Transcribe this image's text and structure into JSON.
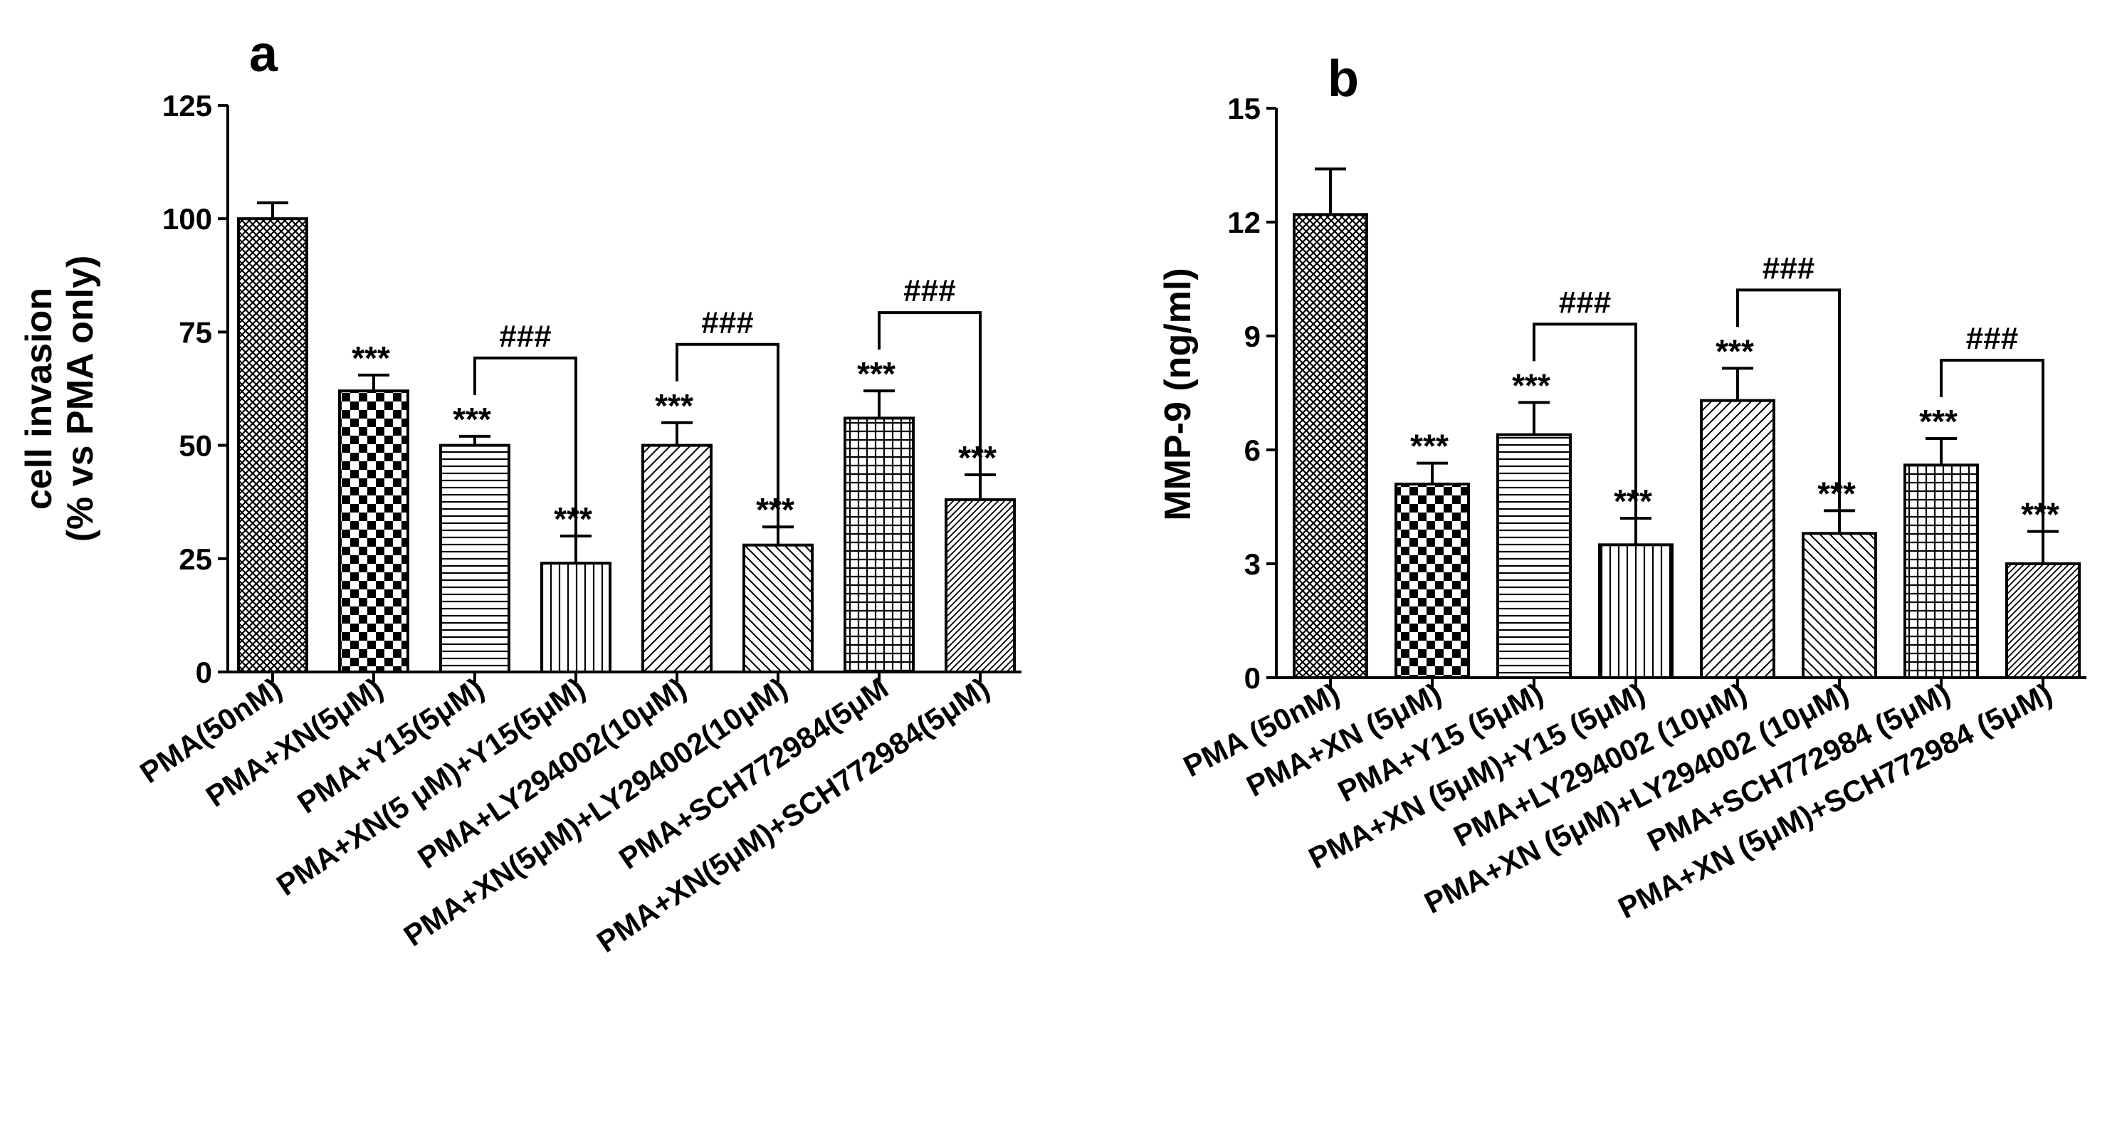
{
  "figure": {
    "colors": {
      "bar_edge": "#000000",
      "pattern": "#000000",
      "background": "#ffffff"
    }
  },
  "chart_data": [
    {
      "panel": "a",
      "type": "bar",
      "ylabel_line1": "cell invasion",
      "ylabel_line2": "(% vs PMA only)",
      "ylim": [
        0,
        125
      ],
      "yticks": [
        0,
        25,
        50,
        75,
        100,
        125
      ],
      "categories": [
        "PMA(50nM)",
        "PMA+XN(5μM)",
        "PMA+Y15(5μM)",
        "PMA+XN(5 μM)+Y15(5μM)",
        "PMA+LY294002(10μM)",
        "PMA+XN(5μM)+LY294002(10μM)",
        "PMA+SCH772984(5μM",
        "PMA+XN(5μM)+SCH772984(5μM)"
      ],
      "values": [
        100,
        62,
        50,
        24,
        50,
        28,
        56,
        38
      ],
      "errors": [
        3.5,
        3.5,
        2,
        6,
        5,
        4,
        6,
        5.5
      ],
      "patterns": [
        "crosshatch",
        "checker",
        "hlines",
        "vlines",
        "diag-right",
        "diag-left",
        "grid",
        "diag-right-fine"
      ],
      "significance": [
        "",
        "***",
        "***",
        "***",
        "***",
        "***",
        "***",
        "***"
      ],
      "brackets": [
        {
          "from": 2,
          "to": 3,
          "label": "###"
        },
        {
          "from": 4,
          "to": 5,
          "label": "###"
        },
        {
          "from": 6,
          "to": 7,
          "label": "###"
        }
      ]
    },
    {
      "panel": "b",
      "type": "bar",
      "ylabel_line1": "MMP-9 (ng/ml)",
      "ylim": [
        0,
        15
      ],
      "yticks": [
        0,
        3,
        6,
        9,
        12,
        15
      ],
      "categories": [
        "PMA (50nM)",
        "PMA+XN (5μM)",
        "PMA+Y15 (5μM)",
        "PMA+XN (5μM)+Y15 (5μM)",
        "PMA+LY294002 (10μM)",
        "PMA+XN (5μM)+LY294002 (10μM)",
        "PMA+SCH772984 (5μM)",
        "PMA+XN (5μM)+SCH772984 (5μM)"
      ],
      "values": [
        12.2,
        5.1,
        6.4,
        3.5,
        7.3,
        3.8,
        5.6,
        3.0
      ],
      "errors": [
        1.2,
        0.55,
        0.85,
        0.7,
        0.85,
        0.6,
        0.7,
        0.85
      ],
      "patterns": [
        "crosshatch",
        "checker",
        "hlines",
        "vlines",
        "diag-right",
        "diag-left",
        "grid",
        "diag-right-fine"
      ],
      "significance": [
        "",
        "***",
        "***",
        "***",
        "***",
        "***",
        "***",
        "***"
      ],
      "brackets": [
        {
          "from": 2,
          "to": 3,
          "label": "###"
        },
        {
          "from": 4,
          "to": 5,
          "label": "###"
        },
        {
          "from": 6,
          "to": 7,
          "label": "###"
        }
      ]
    }
  ]
}
